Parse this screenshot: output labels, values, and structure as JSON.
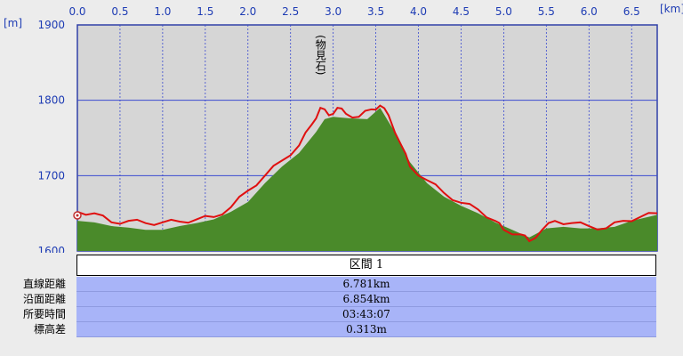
{
  "chart_data": {
    "type": "area",
    "xlabel": "[km]",
    "ylabel": "[m]",
    "xlim": [
      0,
      6.8
    ],
    "ylim": [
      1600,
      1900
    ],
    "x_ticks": [
      "0.0",
      "0.5",
      "1.0",
      "1.5",
      "2.0",
      "2.5",
      "3.0",
      "3.5",
      "4.0",
      "4.5",
      "5.0",
      "5.5",
      "6.0",
      "6.5"
    ],
    "y_ticks": [
      "1900",
      "1800",
      "1700",
      "1600"
    ],
    "annotations": [
      {
        "text": "(物見石)",
        "x": 2.85,
        "y": 1790
      }
    ],
    "series": [
      {
        "style": "filled-area",
        "color": "#4a8a2a",
        "x": [
          0,
          0.2,
          0.4,
          0.6,
          0.8,
          1.0,
          1.2,
          1.4,
          1.6,
          1.8,
          2.0,
          2.2,
          2.4,
          2.6,
          2.8,
          2.9,
          3.0,
          3.2,
          3.4,
          3.55,
          3.7,
          3.9,
          4.1,
          4.3,
          4.5,
          4.7,
          4.9,
          5.1,
          5.3,
          5.5,
          5.7,
          5.9,
          6.1,
          6.3,
          6.5,
          6.8
        ],
        "y": [
          1640,
          1638,
          1633,
          1631,
          1628,
          1628,
          1633,
          1637,
          1642,
          1652,
          1665,
          1690,
          1712,
          1730,
          1758,
          1775,
          1778,
          1776,
          1775,
          1790,
          1762,
          1718,
          1690,
          1672,
          1660,
          1650,
          1638,
          1628,
          1618,
          1630,
          1632,
          1630,
          1630,
          1632,
          1640,
          1648
        ]
      },
      {
        "style": "line",
        "color": "#e01010",
        "x": [
          0,
          0.2,
          0.4,
          0.6,
          0.8,
          1.0,
          1.2,
          1.4,
          1.6,
          1.8,
          2.0,
          2.2,
          2.4,
          2.6,
          2.75,
          2.85,
          2.95,
          3.05,
          3.15,
          3.3,
          3.45,
          3.55,
          3.65,
          3.8,
          3.9,
          4.1,
          4.3,
          4.5,
          4.7,
          4.9,
          5.0,
          5.2,
          5.3,
          5.45,
          5.6,
          5.8,
          6.0,
          6.2,
          6.4,
          6.6,
          6.8
        ],
        "y": [
          1652,
          1650,
          1638,
          1640,
          1637,
          1638,
          1639,
          1642,
          1645,
          1658,
          1680,
          1700,
          1720,
          1740,
          1768,
          1790,
          1780,
          1790,
          1782,
          1778,
          1788,
          1793,
          1780,
          1740,
          1712,
          1694,
          1677,
          1664,
          1655,
          1640,
          1628,
          1622,
          1613,
          1628,
          1640,
          1637,
          1633,
          1630,
          1640,
          1645,
          1650
        ]
      }
    ]
  },
  "stats": {
    "header": "区間 1",
    "rows": [
      {
        "label": "直線距離",
        "value": "6.781km"
      },
      {
        "label": "沿面距離",
        "value": "6.854km"
      },
      {
        "label": "所要時間",
        "value": "03:43:07"
      },
      {
        "label": "標高差",
        "value": "0.313m"
      }
    ]
  }
}
